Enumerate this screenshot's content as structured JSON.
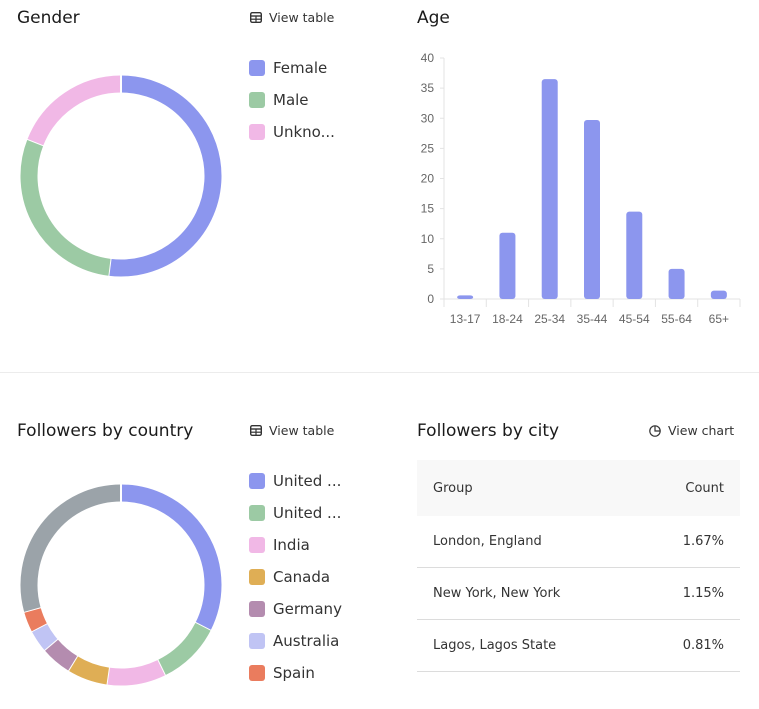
{
  "gender": {
    "title": "Gender",
    "view_label": "View table",
    "icon": "table-icon"
  },
  "age": {
    "title": "Age"
  },
  "country": {
    "title": "Followers by country",
    "view_label": "View table",
    "icon": "table-icon"
  },
  "city": {
    "title": "Followers by city",
    "view_label": "View chart",
    "icon": "pie-chart-icon",
    "headers": [
      "Group",
      "Count"
    ],
    "rows": [
      [
        "London, England",
        "1.67%"
      ],
      [
        "New York, New York",
        "1.15%"
      ],
      [
        "Lagos, Lagos State",
        "0.81%"
      ]
    ]
  },
  "chart_data": [
    {
      "type": "pie",
      "donut": true,
      "legend": "right",
      "labels": [
        "Female",
        "Male",
        "Unkno..."
      ],
      "values": [
        52,
        29,
        19
      ],
      "colors": [
        "#8c96ee",
        "#9ccaa4",
        "#f1b8e6"
      ]
    },
    {
      "type": "bar",
      "title": "Age",
      "categories": [
        "13-17",
        "18-24",
        "25-34",
        "35-44",
        "45-54",
        "55-64",
        "65+"
      ],
      "values": [
        0.6,
        11,
        36.5,
        29.7,
        14.5,
        5,
        1.4
      ],
      "ylim": [
        0,
        40
      ],
      "yticks": [
        0,
        5,
        10,
        15,
        20,
        25,
        30,
        35,
        40
      ],
      "color": "#8c96ee",
      "grid": false
    },
    {
      "type": "pie",
      "donut": true,
      "legend": "right",
      "labels": [
        "United ...",
        "United ...",
        "India",
        "Canada",
        "Germany",
        "Australia",
        "Spain",
        ""
      ],
      "values": [
        32.5,
        10.3,
        9.5,
        6.5,
        5,
        3.6,
        3.3,
        29.3
      ],
      "colors": [
        "#8c96ee",
        "#9ccaa4",
        "#f1b8e6",
        "#dfae55",
        "#b48caf",
        "#c0c4f4",
        "#ea7c5e",
        "#9ba3a9"
      ]
    }
  ]
}
